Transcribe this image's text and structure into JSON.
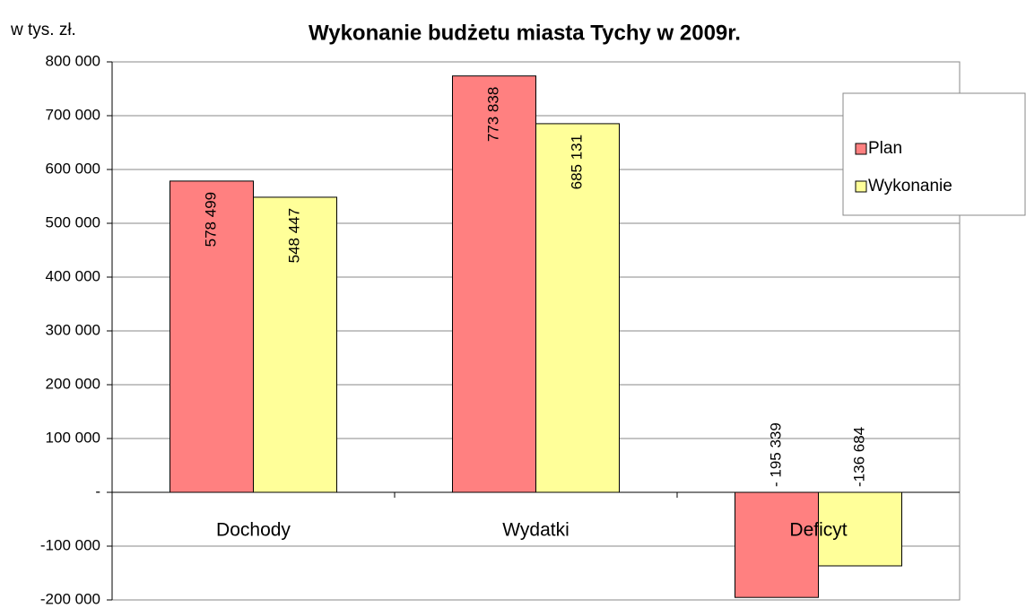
{
  "chart_data": {
    "type": "bar",
    "title": "Wykonanie budżetu miasta Tychy w  2009r.",
    "units": "w tys. zł.",
    "categories": [
      "Dochody",
      "Wydatki",
      "Deficyt"
    ],
    "series": [
      {
        "name": "Plan",
        "color": "#ff8080",
        "values": [
          578499,
          773838,
          -195339
        ],
        "value_labels": [
          "578 499",
          "773 838",
          "- 195 339"
        ]
      },
      {
        "name": "Wykonanie",
        "color": "#ffff99",
        "values": [
          548447,
          685131,
          -136684
        ],
        "value_labels": [
          "548 447",
          "685 131",
          "-136 684"
        ]
      }
    ],
    "ylim": [
      -200000,
      800000
    ],
    "yticks": [
      {
        "value": -200000,
        "label": "-200 000"
      },
      {
        "value": -100000,
        "label": "-100 000"
      },
      {
        "value": 0,
        "label": "-"
      },
      {
        "value": 100000,
        "label": "100 000"
      },
      {
        "value": 200000,
        "label": "200 000"
      },
      {
        "value": 300000,
        "label": "300 000"
      },
      {
        "value": 400000,
        "label": "400 000"
      },
      {
        "value": 500000,
        "label": "500 000"
      },
      {
        "value": 600000,
        "label": "600 000"
      },
      {
        "value": 700000,
        "label": "700 000"
      },
      {
        "value": 800000,
        "label": "800 000"
      }
    ],
    "grid": true,
    "legend": "upper right"
  }
}
